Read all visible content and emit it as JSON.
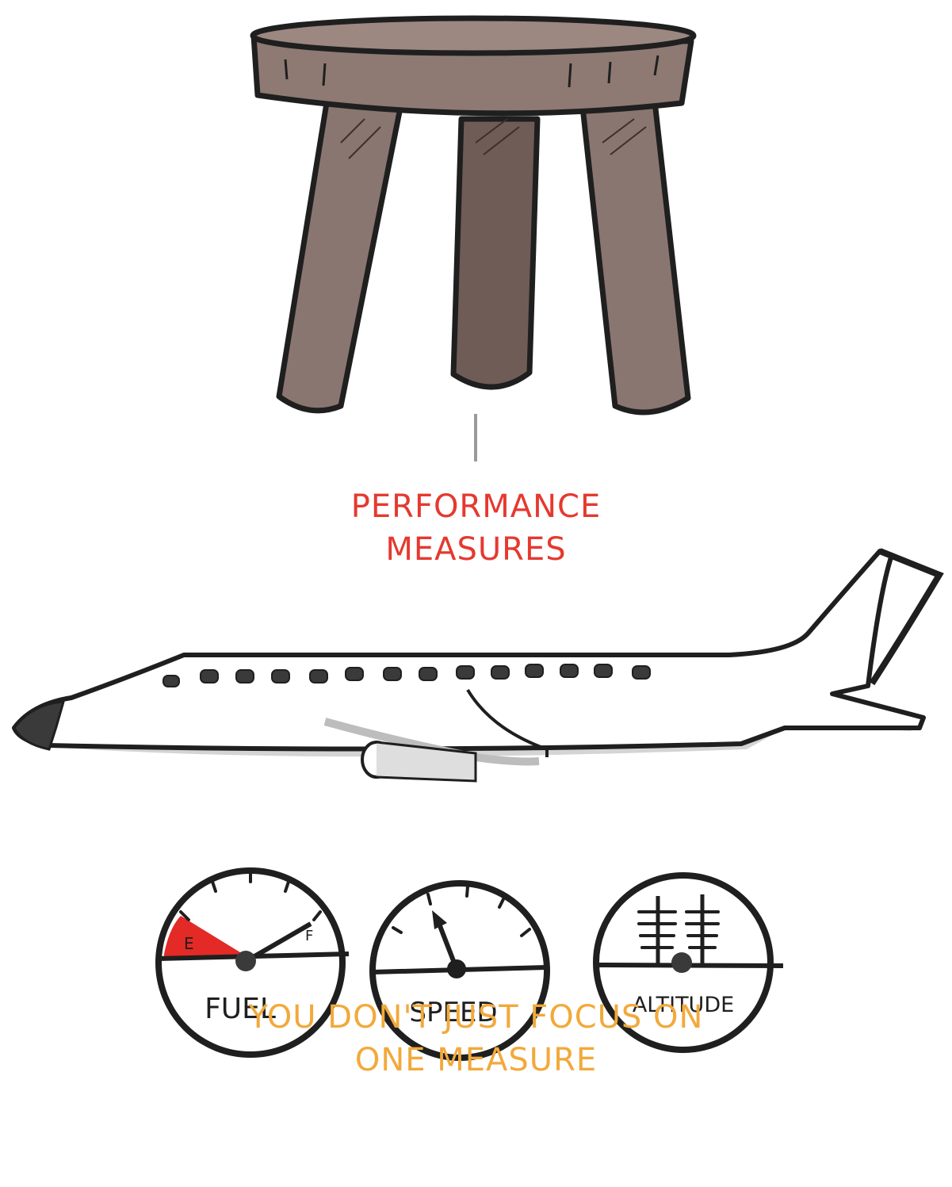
{
  "diagram": {
    "stool_caption": [
      "PERFORMANCE",
      "MEASURES"
    ],
    "gauges": [
      {
        "label": "FUEL",
        "empty_mark": "E",
        "full_mark": "F",
        "danger_color": "#e32a26",
        "icon": "fuel-gauge-icon"
      },
      {
        "label": "SPEED",
        "icon": "speed-gauge-icon"
      },
      {
        "label": "ALTITUDE",
        "icon": "altitude-gauge-icon"
      }
    ],
    "bottom_caption": [
      "YOU DON'T JUST FOCUS ON",
      "ONE MEASURE"
    ],
    "colors": {
      "accent_red": "#e5392f",
      "accent_orange": "#f2a93b",
      "stool_wood": "#8a7670",
      "ink": "#1f1f1f"
    },
    "illustrations": [
      "three-legged-stool-icon",
      "airplane-icon"
    ]
  }
}
